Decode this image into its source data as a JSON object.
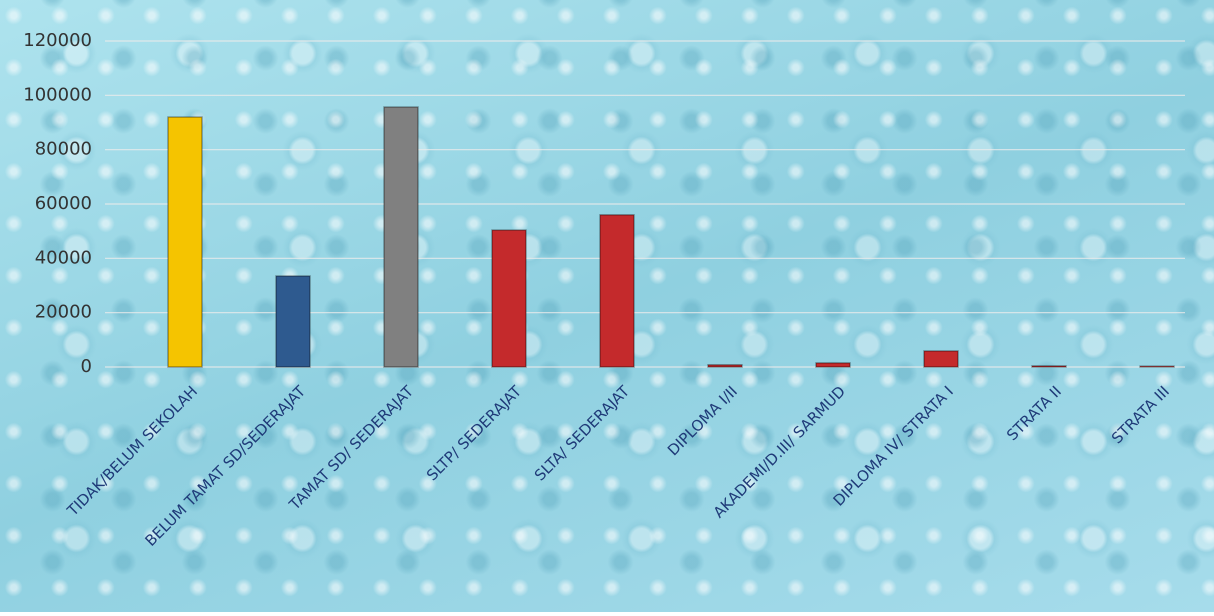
{
  "chart_data": {
    "type": "bar",
    "categories": [
      "TIDAK/BELUM SEKOLAH",
      "BELUM TAMAT SD/SEDERAJAT",
      "TAMAT SD/ SEDERAJAT",
      "SLTP/ SEDERAJAT",
      "SLTA/ SEDERAJAT",
      "DIPLOMA I/II",
      "AKADEMI/D.III/ SARMUD",
      "DIPLOMA IV/ STRATA I",
      "STRATA II",
      "STRATA III"
    ],
    "values": [
      92000,
      33500,
      95700,
      50400,
      56000,
      800,
      1500,
      5900,
      400,
      300
    ],
    "colors": [
      "#f5c400",
      "#2e5a8f",
      "#808080",
      "#c42a2c",
      "#c42a2c",
      "#c42a2c",
      "#c42a2c",
      "#c42a2c",
      "#c42a2c",
      "#c42a2c"
    ],
    "ylim": [
      0,
      120000
    ],
    "yticks": [
      0,
      20000,
      40000,
      60000,
      80000,
      100000,
      120000
    ],
    "grid": true
  }
}
